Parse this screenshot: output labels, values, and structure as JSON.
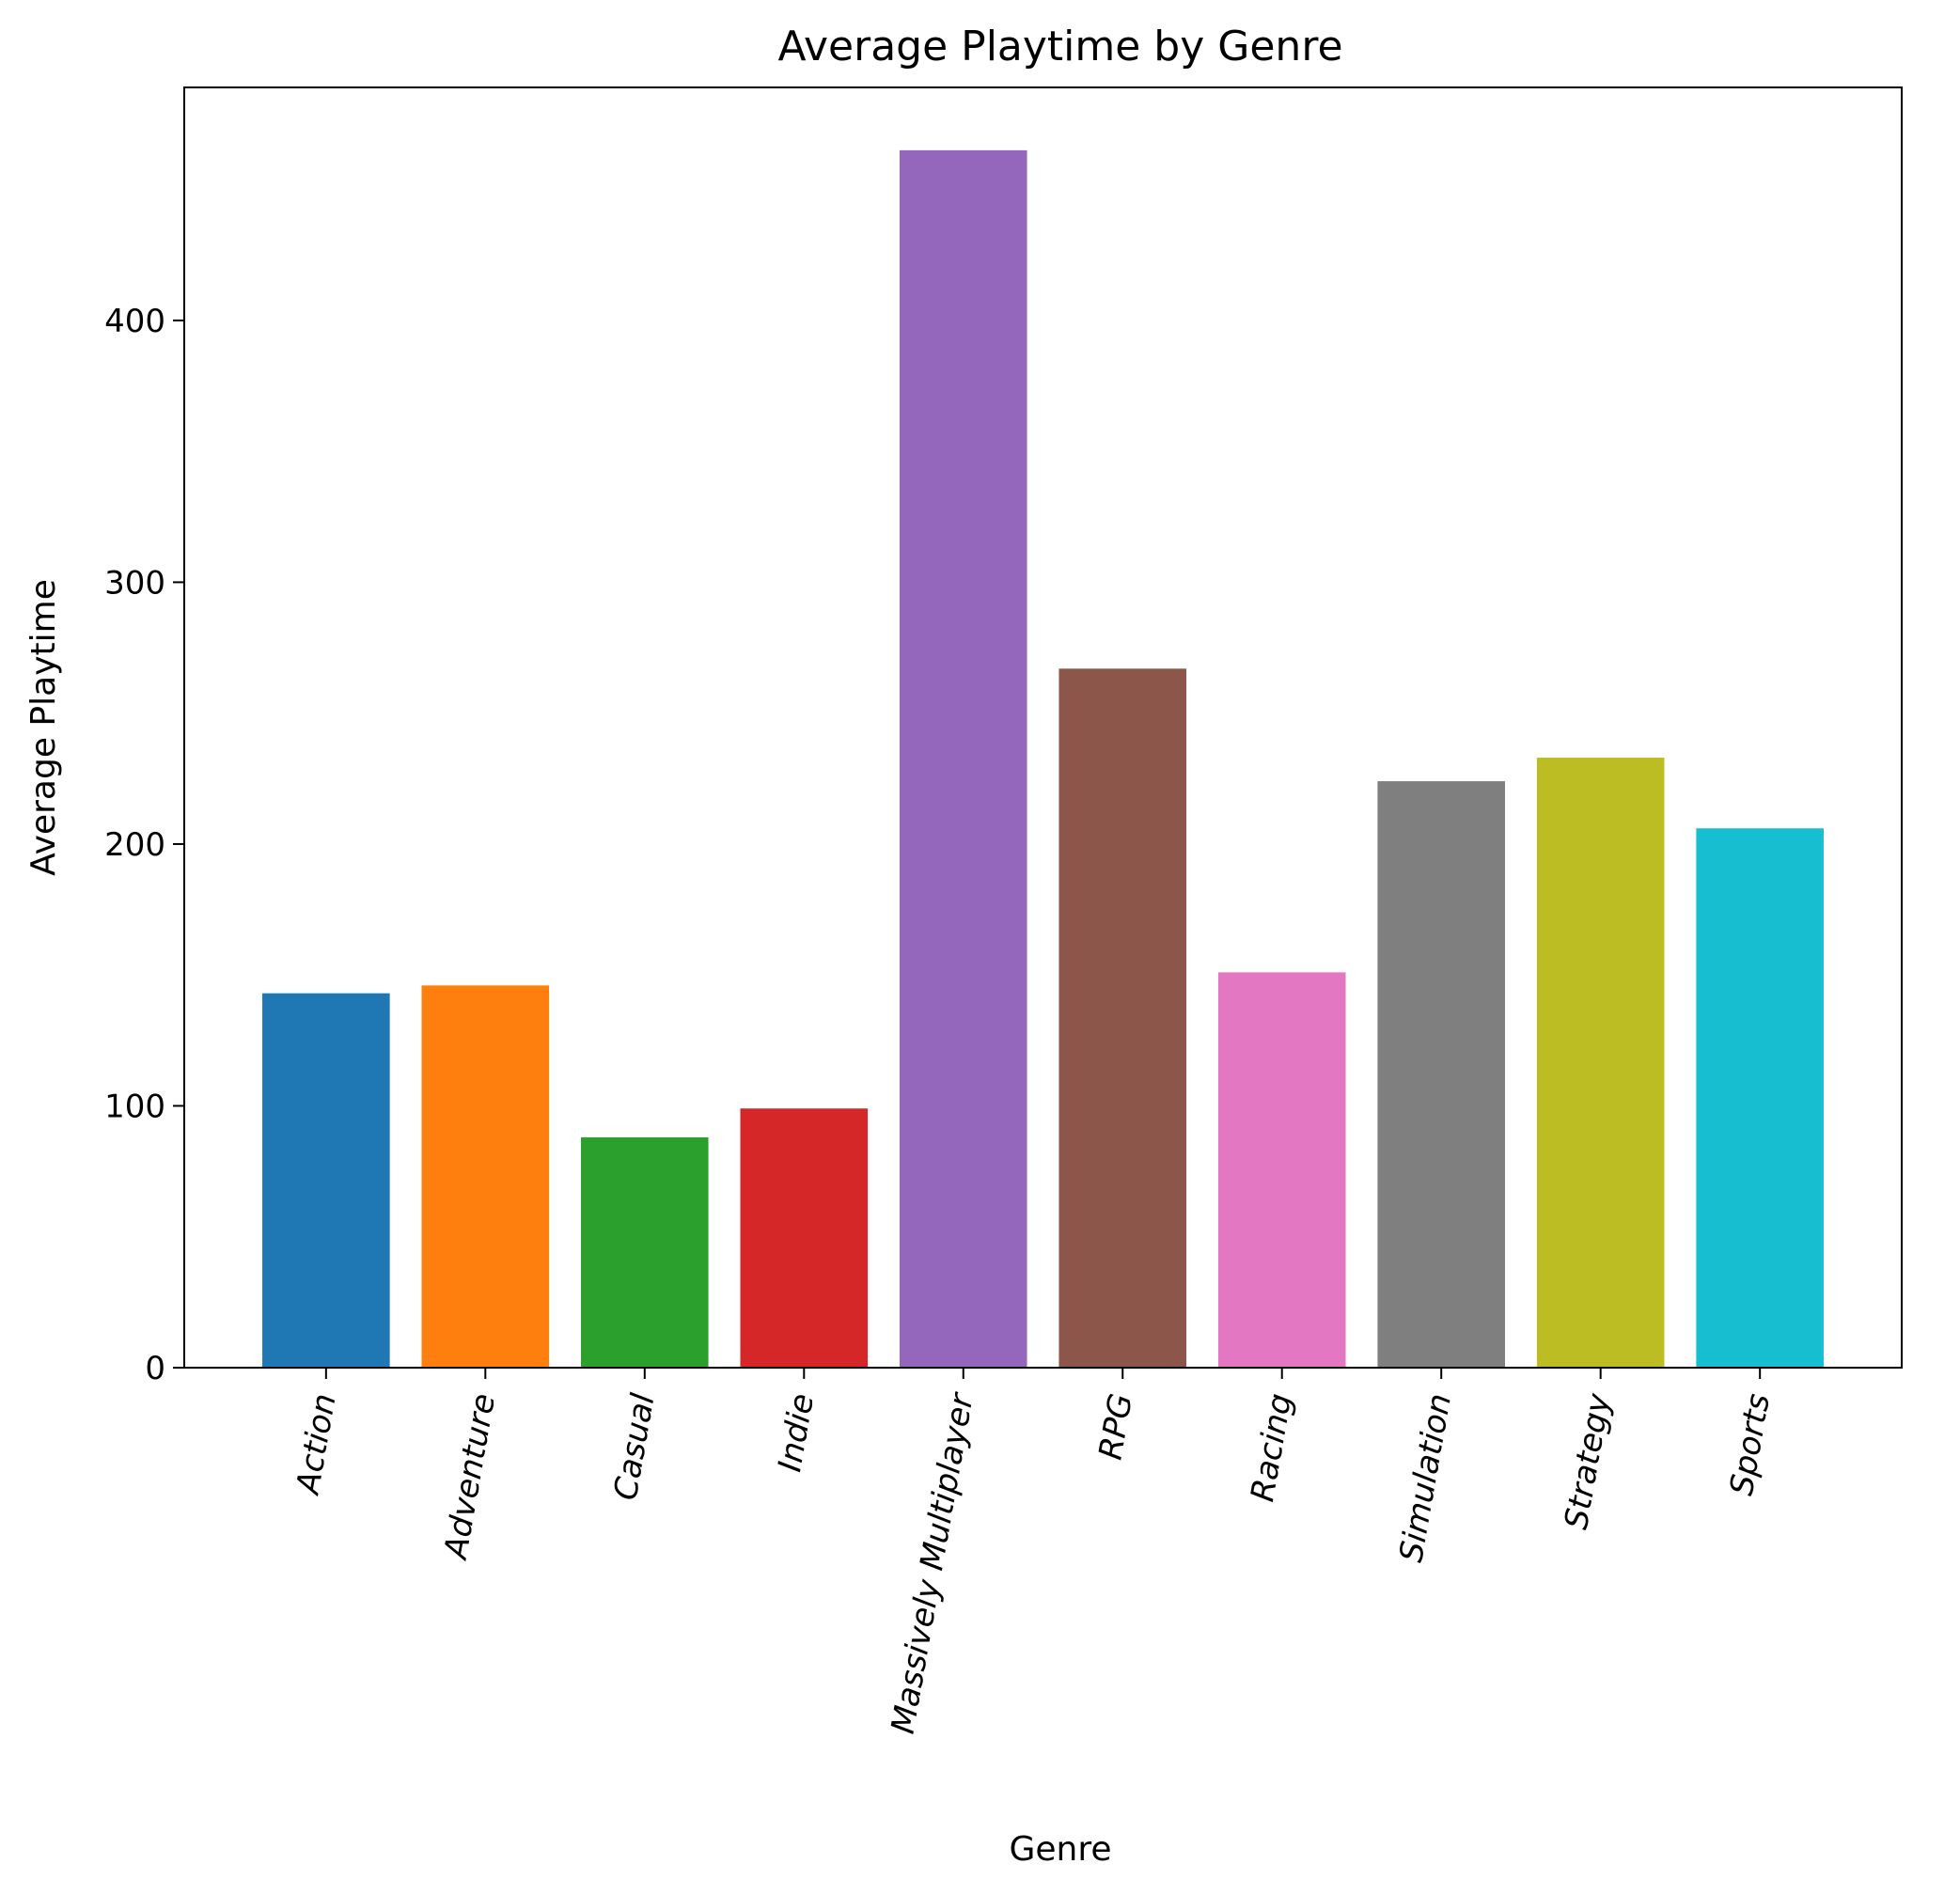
{
  "chart_data": {
    "type": "bar",
    "title": "Average Playtime by Genre",
    "xlabel": "Genre",
    "ylabel": "Average Playtime",
    "ylim": [
      0,
      489
    ],
    "yticks": [
      0,
      100,
      200,
      300,
      400
    ],
    "grid": false,
    "categories": [
      "Action",
      "Adventure",
      "Casual",
      "Indie",
      "Massively Multiplayer",
      "RPG",
      "Racing",
      "Simulation",
      "Strategy",
      "Sports"
    ],
    "values": [
      143,
      146,
      88,
      99,
      465,
      267,
      151,
      224,
      233,
      206
    ],
    "colors": [
      "#1f77b4",
      "#ff7f0e",
      "#2ca02c",
      "#d62728",
      "#9467bd",
      "#8c564b",
      "#e377c2",
      "#7f7f7f",
      "#bcbd22",
      "#17becf"
    ]
  }
}
